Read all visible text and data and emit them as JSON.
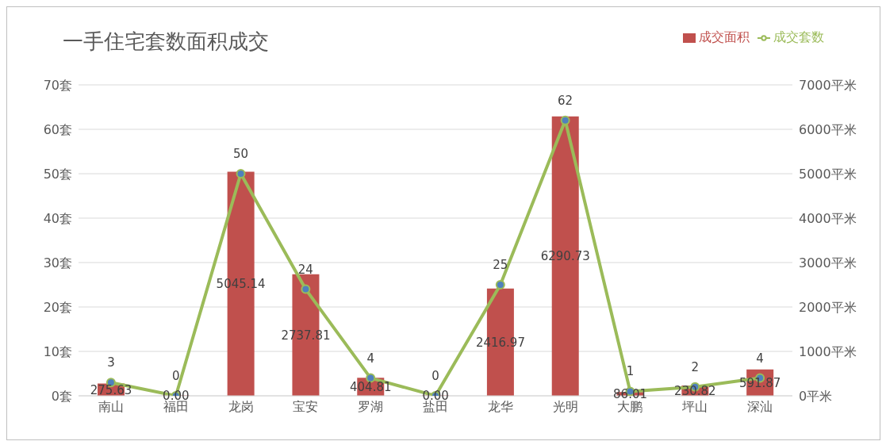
{
  "chart_data": {
    "type": "bar",
    "title": "一手住宅套数面积成交",
    "categories": [
      "南山",
      "福田",
      "龙岗",
      "宝安",
      "罗湖",
      "盐田",
      "龙华",
      "光明",
      "大鹏",
      "坪山",
      "深汕"
    ],
    "series": [
      {
        "name": "成交面积",
        "axis": "y2",
        "color": "#c0504d",
        "values": [
          275.63,
          0,
          5045.14,
          2737.81,
          404.81,
          0,
          2416.97,
          6290.73,
          86.01,
          230.82,
          591.87
        ],
        "value_labels": [
          "275.63",
          "0.00",
          "5045.14",
          "2737.81",
          "404.81",
          "0.00",
          "2416.97",
          "6290.73",
          "86.01",
          "230.82",
          "591.87"
        ]
      },
      {
        "name": "成交套数",
        "type": "line",
        "color": "#9bbb59",
        "values": [
          3,
          0,
          50,
          24,
          4,
          0,
          25,
          62,
          1,
          2,
          4
        ]
      }
    ],
    "data_labels": true,
    "ylim": [
      0,
      70
    ],
    "yticks": [
      {
        "value": 0,
        "label": "0套"
      },
      {
        "value": 10,
        "label": "10套"
      },
      {
        "value": 20,
        "label": "20套"
      },
      {
        "value": 30,
        "label": "30套"
      },
      {
        "value": 40,
        "label": "40套"
      },
      {
        "value": 50,
        "label": "50套"
      },
      {
        "value": 60,
        "label": "60套"
      },
      {
        "value": 70,
        "label": "70套"
      }
    ],
    "y2lim": [
      0,
      7000
    ],
    "y2ticks": [
      {
        "value": 0,
        "label": "0平米"
      },
      {
        "value": 1000,
        "label": "1000平米"
      },
      {
        "value": 2000,
        "label": "2000平米"
      },
      {
        "value": 3000,
        "label": "3000平米"
      },
      {
        "value": 4000,
        "label": "4000平米"
      },
      {
        "value": 5000,
        "label": "5000平米"
      },
      {
        "value": 6000,
        "label": "6000平米"
      },
      {
        "value": 7000,
        "label": "7000平米"
      }
    ],
    "grid": "y",
    "legend": "top right",
    "marker": "circle",
    "line_style": "solid"
  }
}
